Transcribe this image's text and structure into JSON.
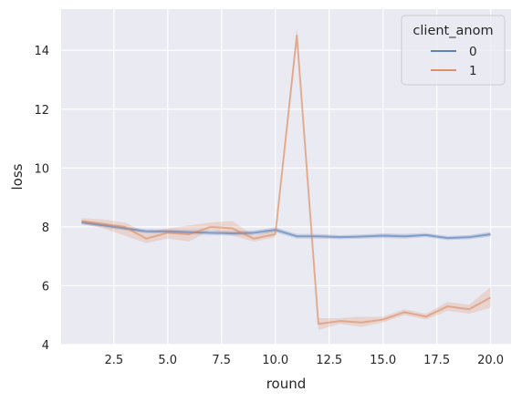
{
  "chart_data": {
    "type": "line",
    "xlabel": "round",
    "ylabel": "loss",
    "xlim": [
      0.05,
      20.95
    ],
    "ylim": [
      4.0,
      15.4
    ],
    "xticks": [
      2.5,
      5.0,
      7.5,
      10.0,
      12.5,
      15.0,
      17.5,
      20.0
    ],
    "xtick_labels": [
      "2.5",
      "5.0",
      "7.5",
      "10.0",
      "12.5",
      "15.0",
      "17.5",
      "20.0"
    ],
    "yticks": [
      4,
      6,
      8,
      10,
      12,
      14
    ],
    "ytick_labels": [
      "4",
      "6",
      "8",
      "10",
      "12",
      "14"
    ],
    "grid": true,
    "legend": {
      "title": "client_anom",
      "placement": "top-right"
    },
    "x": [
      1,
      2,
      3,
      4,
      5,
      6,
      7,
      8,
      9,
      10,
      11,
      12,
      13,
      14,
      15,
      16,
      17,
      18,
      19,
      20
    ],
    "series": [
      {
        "name": "0",
        "color": "#4c72b0",
        "values": [
          8.15,
          8.05,
          7.95,
          7.85,
          7.85,
          7.82,
          7.8,
          7.78,
          7.8,
          7.9,
          7.68,
          7.68,
          7.65,
          7.67,
          7.7,
          7.68,
          7.72,
          7.62,
          7.65,
          7.75
        ],
        "ci_low": [
          8.08,
          7.98,
          7.88,
          7.78,
          7.78,
          7.75,
          7.72,
          7.7,
          7.72,
          7.82,
          7.6,
          7.6,
          7.58,
          7.6,
          7.62,
          7.6,
          7.65,
          7.55,
          7.58,
          7.67
        ],
        "ci_high": [
          8.22,
          8.12,
          8.02,
          7.92,
          7.92,
          7.89,
          7.88,
          7.86,
          7.88,
          7.98,
          7.76,
          7.76,
          7.72,
          7.74,
          7.78,
          7.76,
          7.79,
          7.69,
          7.72,
          7.83
        ]
      },
      {
        "name": "1",
        "color": "#dd8452",
        "values": [
          8.2,
          8.1,
          8.0,
          7.6,
          7.8,
          7.75,
          8.0,
          7.95,
          7.6,
          7.75,
          14.5,
          4.7,
          4.8,
          4.75,
          4.85,
          5.1,
          4.95,
          5.3,
          5.2,
          5.6
        ],
        "ci_low": [
          8.1,
          7.95,
          7.7,
          7.45,
          7.6,
          7.5,
          7.9,
          7.7,
          7.5,
          7.65,
          14.35,
          4.5,
          4.7,
          4.6,
          4.75,
          5.0,
          4.85,
          5.15,
          5.05,
          5.25
        ],
        "ci_high": [
          8.3,
          8.25,
          8.15,
          7.8,
          7.95,
          8.05,
          8.15,
          8.2,
          7.7,
          7.9,
          14.8,
          4.9,
          4.9,
          4.95,
          4.95,
          5.2,
          5.05,
          5.45,
          5.35,
          5.95
        ]
      }
    ]
  }
}
